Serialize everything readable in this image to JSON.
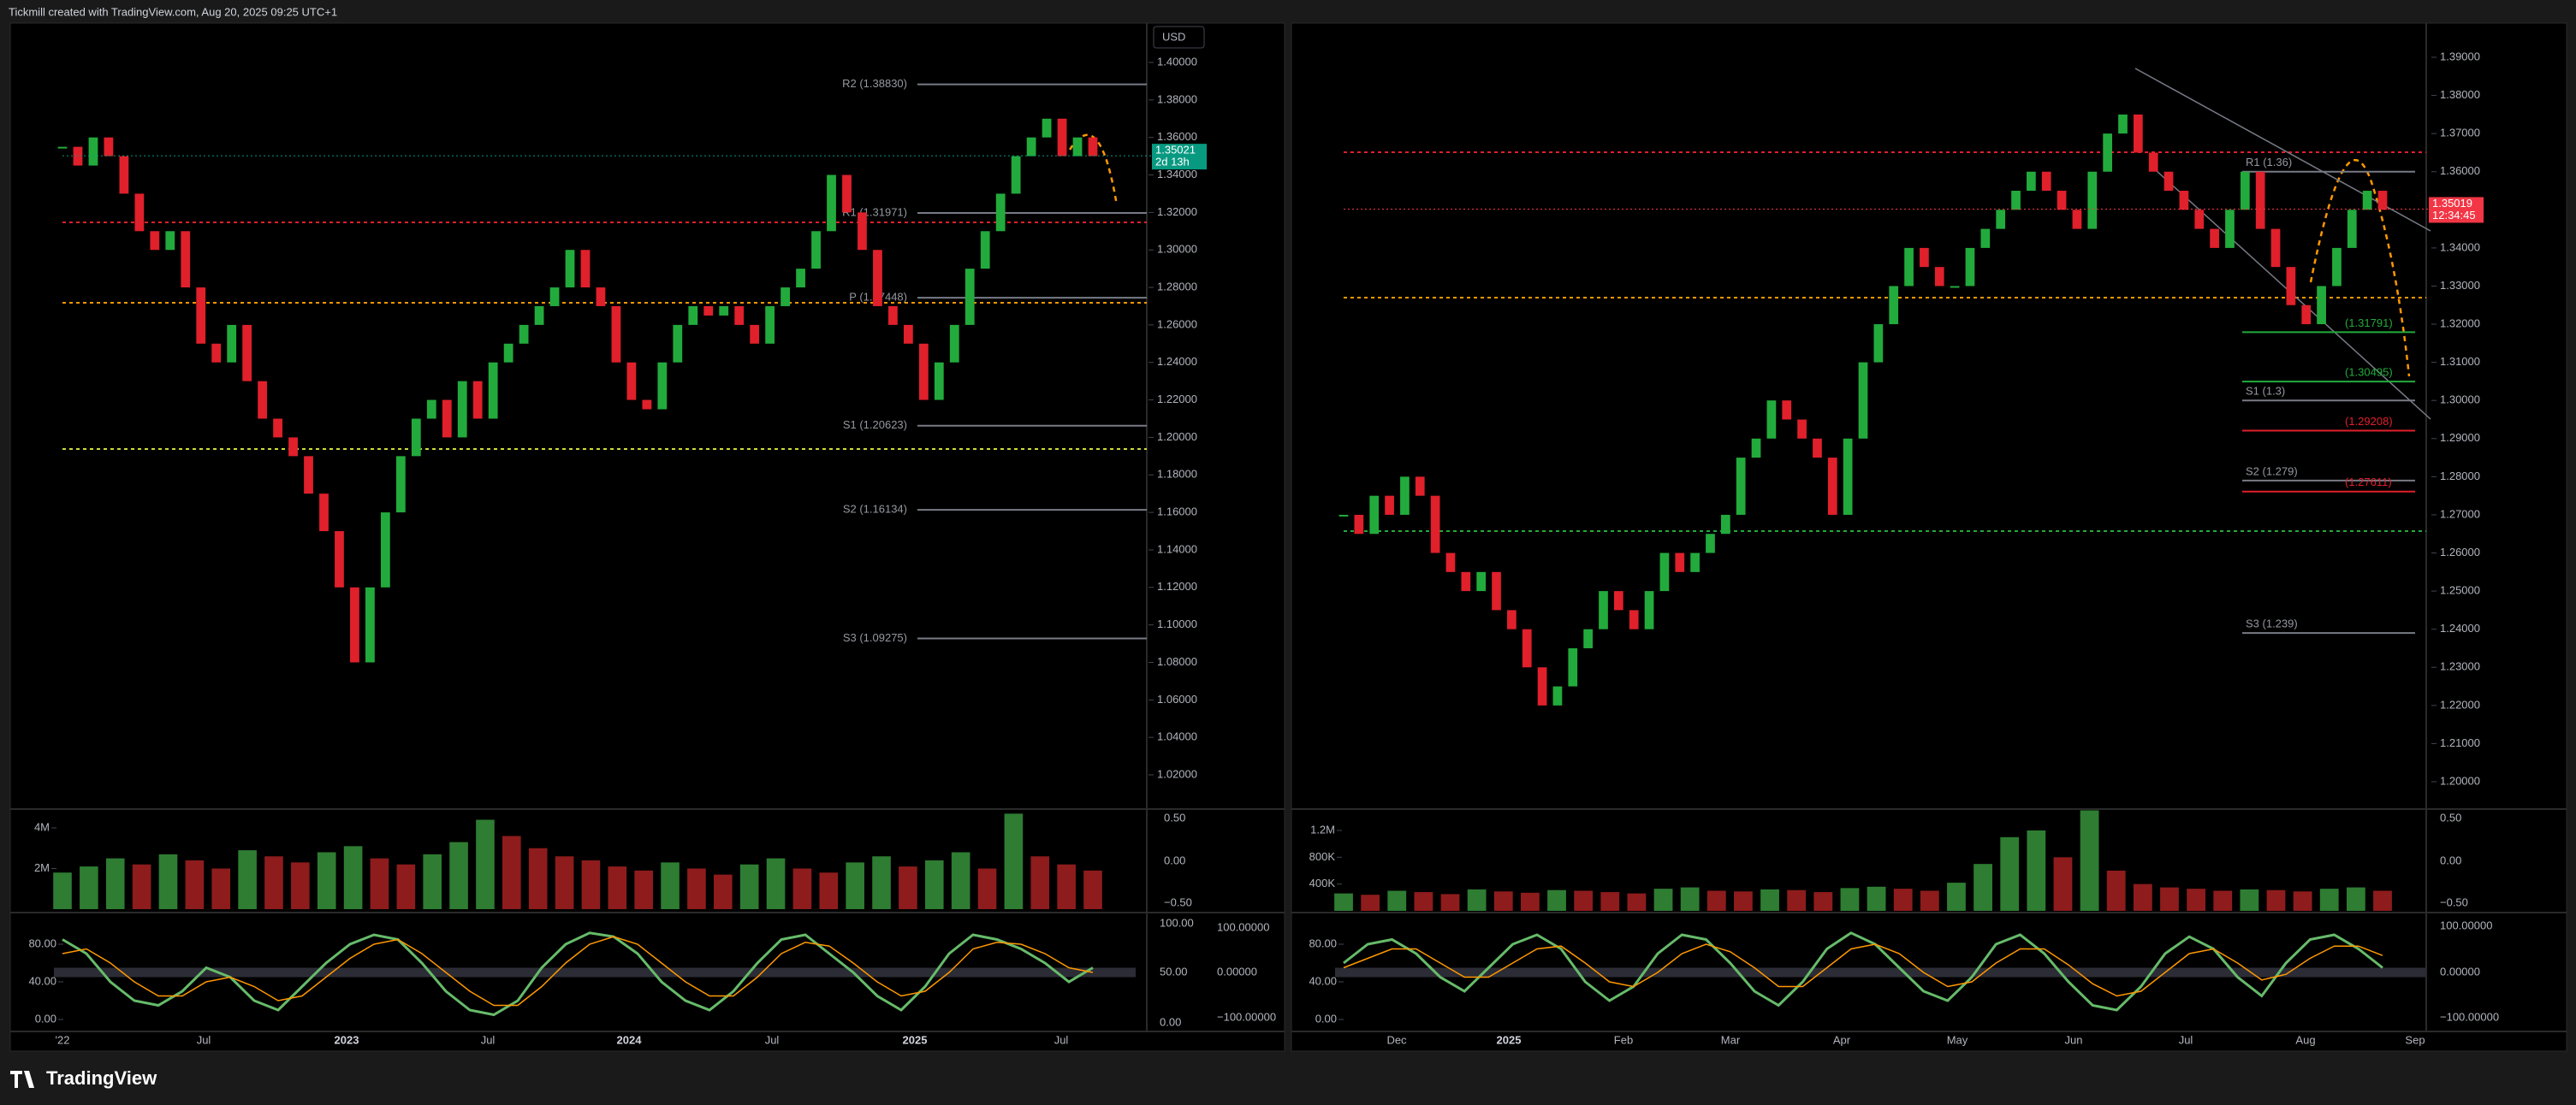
{
  "header": {
    "title": "Tickmill created with TradingView.com, Aug 20, 2025 09:25 UTC+1"
  },
  "footer": {
    "brand": "TradingView"
  },
  "panels": [
    {
      "currency": "USD",
      "ylim": [
        1.02,
        1.4
      ],
      "price_ticks": [
        {
          "value": 1.4,
          "label": "1.40000"
        },
        {
          "value": 1.38,
          "label": "1.38000"
        },
        {
          "value": 1.36,
          "label": "1.36000"
        },
        {
          "value": 1.34,
          "label": "1.34000"
        },
        {
          "value": 1.32,
          "label": "1.32000"
        },
        {
          "value": 1.3,
          "label": "1.30000"
        },
        {
          "value": 1.28,
          "label": "1.28000"
        },
        {
          "value": 1.26,
          "label": "1.26000"
        },
        {
          "value": 1.24,
          "label": "1.24000"
        },
        {
          "value": 1.22,
          "label": "1.22000"
        },
        {
          "value": 1.2,
          "label": "1.20000"
        },
        {
          "value": 1.18,
          "label": "1.18000"
        },
        {
          "value": 1.16,
          "label": "1.16000"
        },
        {
          "value": 1.14,
          "label": "1.14000"
        },
        {
          "value": 1.12,
          "label": "1.12000"
        },
        {
          "value": 1.1,
          "label": "1.10000"
        },
        {
          "value": 1.08,
          "label": "1.08000"
        },
        {
          "value": 1.06,
          "label": "1.06000"
        },
        {
          "value": 1.04,
          "label": "1.04000"
        },
        {
          "value": 1.02,
          "label": "1.02000"
        }
      ],
      "up_color": "#22ab3c",
      "down_color": "#e0202b",
      "closes": [
        1.355,
        1.345,
        1.36,
        1.35,
        1.33,
        1.31,
        1.3,
        1.31,
        1.28,
        1.25,
        1.24,
        1.26,
        1.23,
        1.21,
        1.2,
        1.19,
        1.17,
        1.15,
        1.12,
        1.08,
        1.12,
        1.16,
        1.19,
        1.21,
        1.22,
        1.2,
        1.23,
        1.21,
        1.24,
        1.25,
        1.26,
        1.27,
        1.28,
        1.3,
        1.28,
        1.27,
        1.24,
        1.22,
        1.215,
        1.24,
        1.26,
        1.27,
        1.265,
        1.27,
        1.26,
        1.25,
        1.27,
        1.28,
        1.29,
        1.31,
        1.34,
        1.32,
        1.3,
        1.27,
        1.26,
        1.25,
        1.22,
        1.24,
        1.26,
        1.29,
        1.31,
        1.33,
        1.35,
        1.36,
        1.37,
        1.35,
        1.36,
        1.35
      ],
      "last_price": {
        "price": 1.35021,
        "countdown": "2d 13h",
        "color": "#089981"
      },
      "pivots": [
        {
          "label": "R2 (1.38830)",
          "value": 1.3883,
          "color": "#787b86"
        },
        {
          "label": "R1 (1.31971)",
          "value": 1.31971,
          "color": "#787b86"
        },
        {
          "label": "P (1.27448)",
          "value": 1.27448,
          "color": "#787b86"
        },
        {
          "label": "S1 (1.20623)",
          "value": 1.20623,
          "color": "#787b86"
        },
        {
          "label": "S2 (1.16134)",
          "value": 1.16134,
          "color": "#787b86"
        },
        {
          "label": "S3 (1.09275)",
          "value": 1.09275,
          "color": "#787b86"
        }
      ],
      "time_labels": [
        "'22",
        "Jul",
        "2023",
        "Jul",
        "2024",
        "Jul",
        "2025",
        "Jul"
      ],
      "volume": {
        "ticks": [
          {
            "value": 4000000,
            "label": "4M"
          },
          {
            "value": 2000000,
            "label": "2M"
          }
        ],
        "values": [
          1800000,
          2100000,
          2500000,
          2200000,
          2700000,
          2400000,
          2000000,
          2900000,
          2600000,
          2300000,
          2800000,
          3100000,
          2500000,
          2200000,
          2700000,
          3300000,
          4400000,
          3600000,
          3000000,
          2600000,
          2400000,
          2100000,
          1900000,
          2300000,
          2000000,
          1700000,
          2200000,
          2500000,
          2000000,
          1800000,
          2300000,
          2600000,
          2100000,
          2400000,
          2800000,
          2000000,
          4700000,
          2600000,
          2200000,
          1900000
        ],
        "side_labels": [
          "0.50",
          "0.00",
          "−0.50"
        ]
      },
      "oscillator": {
        "ticks": [
          {
            "value": 80,
            "label": "80.00"
          },
          {
            "value": 40,
            "label": "40.00"
          },
          {
            "value": 0,
            "label": "0.00"
          }
        ],
        "series": [
          {
            "color": "#66bb6a",
            "values": [
              85,
              70,
              40,
              20,
              15,
              30,
              55,
              45,
              20,
              10,
              35,
              60,
              80,
              90,
              85,
              60,
              30,
              10,
              5,
              20,
              55,
              80,
              92,
              88,
              70,
              40,
              20,
              10,
              30,
              60,
              85,
              90,
              70,
              50,
              25,
              10,
              35,
              70,
              90,
              85,
              75,
              60,
              40,
              55
            ]
          },
          {
            "color": "#ff9800",
            "values": [
              70,
              75,
              60,
              40,
              25,
              25,
              40,
              45,
              35,
              20,
              25,
              45,
              65,
              80,
              85,
              70,
              50,
              30,
              15,
              15,
              35,
              60,
              80,
              88,
              80,
              60,
              40,
              25,
              25,
              45,
              70,
              82,
              78,
              60,
              40,
              25,
              30,
              50,
              75,
              82,
              80,
              70,
              55,
              50
            ]
          }
        ],
        "side_labels": [
          "100.00",
          "50.00",
          "0.00",
          "100.00000",
          "0.00000",
          "−100.00000"
        ]
      }
    },
    {
      "ylim": [
        1.2,
        1.39
      ],
      "price_ticks": [
        {
          "value": 1.39,
          "label": "1.39000"
        },
        {
          "value": 1.38,
          "label": "1.38000"
        },
        {
          "value": 1.37,
          "label": "1.37000"
        },
        {
          "value": 1.36,
          "label": "1.36000"
        },
        {
          "value": 1.35,
          "label": "1.35000"
        },
        {
          "value": 1.34,
          "label": "1.34000"
        },
        {
          "value": 1.33,
          "label": "1.33000"
        },
        {
          "value": 1.32,
          "label": "1.32000"
        },
        {
          "value": 1.31,
          "label": "1.31000"
        },
        {
          "value": 1.3,
          "label": "1.30000"
        },
        {
          "value": 1.29,
          "label": "1.29000"
        },
        {
          "value": 1.28,
          "label": "1.28000"
        },
        {
          "value": 1.27,
          "label": "1.27000"
        },
        {
          "value": 1.26,
          "label": "1.26000"
        },
        {
          "value": 1.25,
          "label": "1.25000"
        },
        {
          "value": 1.24,
          "label": "1.24000"
        },
        {
          "value": 1.23,
          "label": "1.23000"
        },
        {
          "value": 1.22,
          "label": "1.22000"
        },
        {
          "value": 1.21,
          "label": "1.21000"
        },
        {
          "value": 1.2,
          "label": "1.20000"
        }
      ],
      "up_color": "#22ab3c",
      "down_color": "#e0202b",
      "closes": [
        1.27,
        1.265,
        1.275,
        1.27,
        1.28,
        1.275,
        1.26,
        1.255,
        1.25,
        1.255,
        1.245,
        1.24,
        1.23,
        1.22,
        1.225,
        1.235,
        1.24,
        1.25,
        1.245,
        1.24,
        1.25,
        1.26,
        1.255,
        1.26,
        1.265,
        1.27,
        1.285,
        1.29,
        1.3,
        1.295,
        1.29,
        1.285,
        1.27,
        1.29,
        1.31,
        1.32,
        1.33,
        1.34,
        1.335,
        1.33,
        1.33,
        1.34,
        1.345,
        1.35,
        1.355,
        1.36,
        1.355,
        1.35,
        1.345,
        1.36,
        1.37,
        1.375,
        1.365,
        1.36,
        1.355,
        1.35,
        1.345,
        1.34,
        1.35,
        1.36,
        1.345,
        1.335,
        1.325,
        1.32,
        1.33,
        1.34,
        1.35,
        1.355,
        1.35
      ],
      "last_price": {
        "price": 1.35019,
        "countdown": "12:34:45",
        "color": "#f23645"
      },
      "pivots": [
        {
          "label": "R1 (1.36)",
          "value": 1.36,
          "color": "#787b86"
        },
        {
          "label": "(1.31791)",
          "value": 1.31791,
          "color": "#22ab3c"
        },
        {
          "label": "(1.30495)",
          "value": 1.30495,
          "color": "#22ab3c"
        },
        {
          "label": "S1 (1.3)",
          "value": 1.3,
          "color": "#787b86"
        },
        {
          "label": "(1.29208)",
          "value": 1.29208,
          "color": "#e0202b"
        },
        {
          "label": "S2 (1.279)",
          "value": 1.279,
          "color": "#787b86"
        },
        {
          "label": "(1.27611)",
          "value": 1.27611,
          "color": "#e0202b"
        },
        {
          "label": "S3 (1.239)",
          "value": 1.239,
          "color": "#787b86"
        }
      ],
      "time_labels": [
        "Dec",
        "2025",
        "Feb",
        "Mar",
        "Apr",
        "May",
        "Jun",
        "Jul",
        "Aug",
        "Sep"
      ],
      "volume": {
        "ticks": [
          {
            "value": 1200000,
            "label": "1.2M"
          },
          {
            "value": 800000,
            "label": "800K"
          },
          {
            "value": 400000,
            "label": "400K"
          }
        ],
        "values": [
          260000,
          240000,
          300000,
          280000,
          250000,
          320000,
          290000,
          270000,
          310000,
          300000,
          280000,
          260000,
          330000,
          350000,
          300000,
          290000,
          320000,
          310000,
          280000,
          340000,
          360000,
          330000,
          300000,
          420000,
          700000,
          1100000,
          1200000,
          800000,
          1500000,
          600000,
          400000,
          350000,
          330000,
          300000,
          320000,
          310000,
          290000,
          330000,
          350000,
          300000
        ],
        "side_labels": [
          "0.50",
          "0.00",
          "−0.50"
        ]
      },
      "oscillator": {
        "ticks": [
          {
            "value": 80,
            "label": "80.00"
          },
          {
            "value": 40,
            "label": "40.00"
          },
          {
            "value": 0,
            "label": "0.00"
          }
        ],
        "series": [
          {
            "color": "#66bb6a",
            "values": [
              60,
              80,
              85,
              70,
              45,
              30,
              55,
              80,
              90,
              75,
              40,
              20,
              35,
              70,
              90,
              85,
              60,
              30,
              15,
              40,
              75,
              92,
              80,
              55,
              30,
              20,
              45,
              80,
              90,
              70,
              40,
              15,
              10,
              35,
              70,
              88,
              75,
              45,
              25,
              60,
              85,
              90,
              75,
              55
            ]
          },
          {
            "color": "#ff9800",
            "values": [
              55,
              65,
              75,
              75,
              60,
              45,
              45,
              60,
              75,
              78,
              60,
              40,
              35,
              50,
              70,
              80,
              72,
              55,
              35,
              35,
              55,
              75,
              80,
              70,
              50,
              35,
              40,
              60,
              75,
              75,
              58,
              38,
              25,
              30,
              50,
              70,
              75,
              60,
              42,
              48,
              65,
              78,
              78,
              68
            ]
          }
        ],
        "side_labels": [
          "100.00000",
          "0.00000",
          "−100.00000"
        ]
      }
    }
  ]
}
